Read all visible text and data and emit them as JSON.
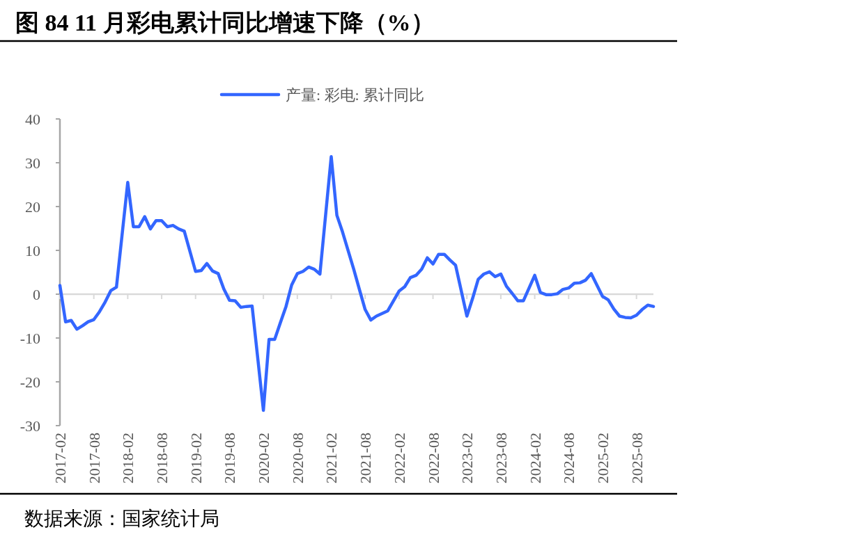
{
  "chart_data": {
    "type": "line",
    "title": "图 84 11 月彩电累计同比增速下降（%）",
    "x": [
      "2017-02",
      "2017-03",
      "2017-04",
      "2017-05",
      "2017-06",
      "2017-07",
      "2017-08",
      "2017-09",
      "2017-10",
      "2017-11",
      "2017-12",
      "2018-02",
      "2018-03",
      "2018-04",
      "2018-05",
      "2018-06",
      "2018-07",
      "2018-08",
      "2018-09",
      "2018-10",
      "2018-11",
      "2018-12",
      "2019-02",
      "2019-03",
      "2019-04",
      "2019-05",
      "2019-06",
      "2019-07",
      "2019-08",
      "2019-09",
      "2019-10",
      "2019-11",
      "2019-12",
      "2020-02",
      "2020-03",
      "2020-04",
      "2020-05",
      "2020-06",
      "2020-07",
      "2020-08",
      "2020-09",
      "2020-10",
      "2020-11",
      "2020-12",
      "2021-02",
      "2021-03",
      "2021-04",
      "2021-05",
      "2021-06",
      "2021-07",
      "2021-08",
      "2021-09",
      "2021-10",
      "2021-11",
      "2021-12",
      "2022-02",
      "2022-03",
      "2022-04",
      "2022-05",
      "2022-06",
      "2022-07",
      "2022-08",
      "2022-09",
      "2022-10",
      "2022-11",
      "2022-12",
      "2023-02",
      "2023-03",
      "2023-04",
      "2023-05",
      "2023-06",
      "2023-07",
      "2023-08",
      "2023-09",
      "2023-10",
      "2023-11",
      "2023-12",
      "2024-02",
      "2024-03",
      "2024-04",
      "2024-05",
      "2024-06",
      "2024-07",
      "2024-08",
      "2024-09",
      "2024-10",
      "2024-11",
      "2024-12",
      "2025-02",
      "2025-03",
      "2025-04",
      "2025-05",
      "2025-06",
      "2025-07",
      "2025-08",
      "2025-09",
      "2025-10",
      "2025-11"
    ],
    "series": [
      {
        "name": "产量: 彩电: 累计同比",
        "color": "#3366ff",
        "values": [
          2,
          -6.3,
          -6,
          -8,
          -7.2,
          -6.3,
          -5.8,
          -4,
          -1.8,
          0.8,
          1.6,
          25.5,
          15.4,
          15.4,
          17.7,
          14.9,
          16.8,
          16.8,
          15.4,
          15.7,
          14.9,
          14.4,
          5.2,
          5.4,
          7,
          5.3,
          4.7,
          1.2,
          -1.4,
          -1.5,
          -3,
          -2.8,
          -2.7,
          -26.5,
          -10.3,
          -10.3,
          -6.5,
          -2.8,
          2.1,
          4.7,
          5.2,
          6.2,
          5.7,
          4.6,
          31.4,
          18,
          14.2,
          9.9,
          5.6,
          1,
          -3.5,
          -5.9,
          -5,
          -4.4,
          -3.8,
          0.7,
          1.7,
          3.8,
          4.3,
          5.7,
          8.3,
          6.9,
          9.1,
          9.1,
          7.8,
          6.6,
          -5,
          -1,
          3.4,
          4.6,
          5.1,
          4,
          4.6,
          1.8,
          0.2,
          -1.5,
          -1.5,
          4.3,
          0.4,
          -0.1,
          -0.1,
          0.1,
          1.1,
          1.4,
          2.5,
          2.6,
          3.2,
          4.7,
          -0.5,
          -1.3,
          -3.4,
          -5,
          -5.3,
          -5.4,
          -4.8,
          -3.5,
          -2.5,
          -2.8
        ]
      }
    ],
    "xlim": [
      "2017-02",
      "2025-11"
    ],
    "xticks": [
      "2017-02",
      "2017-08",
      "2018-02",
      "2018-08",
      "2019-02",
      "2019-08",
      "2020-02",
      "2020-08",
      "2021-02",
      "2021-08",
      "2022-02",
      "2022-08",
      "2023-02",
      "2023-08",
      "2024-02",
      "2024-08",
      "2025-02",
      "2025-08"
    ],
    "ylim": [
      -30,
      40
    ],
    "yticks": [
      -30,
      -20,
      -10,
      0,
      10,
      20,
      30,
      40
    ],
    "legend": "top",
    "marker": "none",
    "line_style": "solid",
    "annotations": [
      "数据来源：国家统计局"
    ]
  }
}
